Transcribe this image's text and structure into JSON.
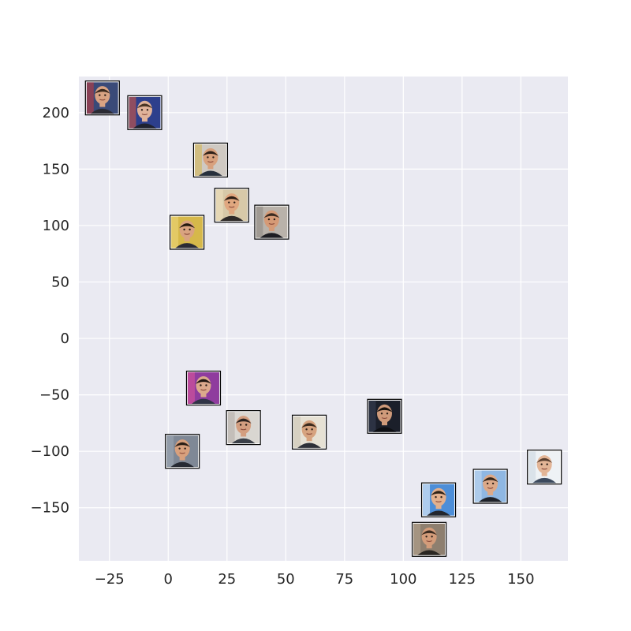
{
  "chart_data": {
    "type": "scatter",
    "marker": "photo-thumbnail",
    "title": "",
    "xlabel": "",
    "ylabel": "",
    "xlim": [
      -38,
      170
    ],
    "ylim": [
      -197,
      232
    ],
    "xticks": [
      -25,
      0,
      25,
      50,
      75,
      100,
      125,
      150
    ],
    "xtick_labels": [
      "−25",
      "0",
      "25",
      "50",
      "75",
      "100",
      "125",
      "150"
    ],
    "yticks": [
      -150,
      -100,
      -50,
      0,
      50,
      100,
      150,
      200
    ],
    "ytick_labels": [
      "−150",
      "−100",
      "−50",
      "0",
      "50",
      "100",
      "150",
      "200"
    ],
    "grid": true,
    "background": "#EAEAF2",
    "grid_color": "#FFFFFF",
    "tick_label_color": "#262626",
    "points": [
      {
        "x": -28,
        "y": 213,
        "thumb": "face-broadcast-studio"
      },
      {
        "x": -10,
        "y": 200,
        "thumb": "face-stage-lights"
      },
      {
        "x": 18,
        "y": 158,
        "thumb": "face-press-backdrop"
      },
      {
        "x": 27,
        "y": 118,
        "thumb": "face-smiling-closeup"
      },
      {
        "x": 44,
        "y": 103,
        "thumb": "face-speaking"
      },
      {
        "x": 8,
        "y": 94,
        "thumb": "face-yellow-background"
      },
      {
        "x": 15,
        "y": -44,
        "thumb": "face-purple-background"
      },
      {
        "x": 32,
        "y": -79,
        "thumb": "face-grey-suit"
      },
      {
        "x": 60,
        "y": -83,
        "thumb": "face-light-background"
      },
      {
        "x": 92,
        "y": -69,
        "thumb": "face-dark-background"
      },
      {
        "x": 6,
        "y": -100,
        "thumb": "face-laughing"
      },
      {
        "x": 115,
        "y": -143,
        "thumb": "face-blue-background"
      },
      {
        "x": 137,
        "y": -131,
        "thumb": "face-smiling-blue"
      },
      {
        "x": 160,
        "y": -114,
        "thumb": "face-white-background"
      },
      {
        "x": 111,
        "y": -178,
        "thumb": "face-long-hair"
      }
    ],
    "thumb_palettes": {
      "face-broadcast-studio": {
        "bg": "#3a4a78",
        "accent": "#c83a3a",
        "skin": "#d9a383",
        "hair": "#3b2a1e",
        "shirt": "#2b2b33"
      },
      "face-stage-lights": {
        "bg": "#2d3f8c",
        "accent": "#e05a3c",
        "skin": "#e1b39a",
        "hair": "#4a3422",
        "shirt": "#1f2230"
      },
      "face-press-backdrop": {
        "bg": "#cfc9c2",
        "accent": "#d4b24a",
        "skin": "#d8a17d",
        "hair": "#2e2019",
        "shirt": "#27303d"
      },
      "face-smiling-closeup": {
        "bg": "#d7c9a8",
        "accent": "#f0e2c0",
        "skin": "#e0a77f",
        "hair": "#2c1e15",
        "shirt": "#2e2a28"
      },
      "face-speaking": {
        "bg": "#b9b2aa",
        "accent": "#8c8680",
        "skin": "#d59a76",
        "hair": "#3a2a20",
        "shirt": "#1d1d22"
      },
      "face-yellow-background": {
        "bg": "#d6b84a",
        "accent": "#efd77c",
        "skin": "#d9a380",
        "hair": "#24190f",
        "shirt": "#2a2a35"
      },
      "face-purple-background": {
        "bg": "#8f3c9e",
        "accent": "#e0579a",
        "skin": "#dba98c",
        "hair": "#201712",
        "shirt": "#303446"
      },
      "face-grey-suit": {
        "bg": "#d9d6d1",
        "accent": "#b1aca5",
        "skin": "#d39e80",
        "hair": "#2b2320",
        "shirt": "#3a3f48"
      },
      "face-light-background": {
        "bg": "#e6e1d4",
        "accent": "#c9c2b1",
        "skin": "#d6a37f",
        "hair": "#3a2a1e",
        "shirt": "#2d3038"
      },
      "face-dark-background": {
        "bg": "#1b1f2a",
        "accent": "#3a4258",
        "skin": "#cf9a7a",
        "hair": "#18120d",
        "shirt": "#0e0f14"
      },
      "face-laughing": {
        "bg": "#7f8896",
        "accent": "#a3adba",
        "skin": "#d8a07d",
        "hair": "#2a1e16",
        "shirt": "#262a33"
      },
      "face-blue-background": {
        "bg": "#4d8ed8",
        "accent": "#ffffff",
        "skin": "#e2b08e",
        "hair": "#2e2218",
        "shirt": "#23262e"
      },
      "face-smiling-blue": {
        "bg": "#8fb7e2",
        "accent": "#c6dcf2",
        "skin": "#dca988",
        "hair": "#352519",
        "shirt": "#1f2229"
      },
      "face-white-background": {
        "bg": "#eef2f5",
        "accent": "#cbd6df",
        "skin": "#e3b596",
        "hair": "#5a4030",
        "shirt": "#3c4a5e"
      },
      "face-long-hair": {
        "bg": "#8e7f6f",
        "accent": "#b7a58f",
        "skin": "#d39c7a",
        "hair": "#3b2b20",
        "shirt": "#2a2622"
      }
    }
  }
}
